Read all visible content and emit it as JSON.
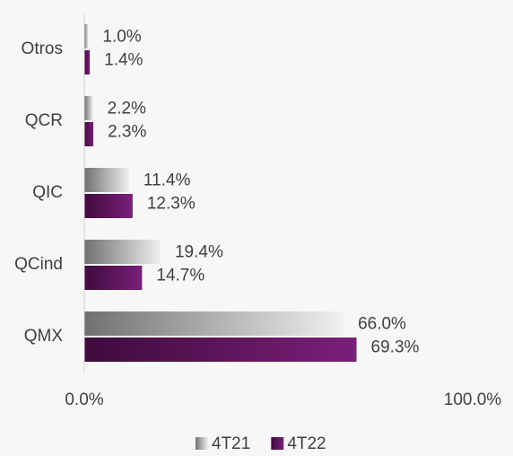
{
  "chart_data": {
    "type": "bar",
    "orientation": "horizontal",
    "categories": [
      "Otros",
      "QCR",
      "QIC",
      "QCind",
      "QMX"
    ],
    "series": [
      {
        "name": "4T21",
        "color": "#b0b0b0",
        "values": [
          1.0,
          2.2,
          11.4,
          19.4,
          66.0
        ],
        "value_labels": [
          "1.0%",
          "2.2%",
          "11.4%",
          "19.4%",
          "66.0%"
        ]
      },
      {
        "name": "4T22",
        "color": "#7b1f7a",
        "values": [
          1.4,
          2.3,
          12.3,
          14.7,
          69.3
        ],
        "value_labels": [
          "1.4%",
          "2.3%",
          "12.3%",
          "14.7%",
          "69.3%"
        ]
      }
    ],
    "xlim": [
      0,
      100
    ],
    "xticks": [
      {
        "value": 0,
        "label": "0.0%"
      },
      {
        "value": 100,
        "label": "100.0%"
      }
    ],
    "legend": "bottom"
  }
}
